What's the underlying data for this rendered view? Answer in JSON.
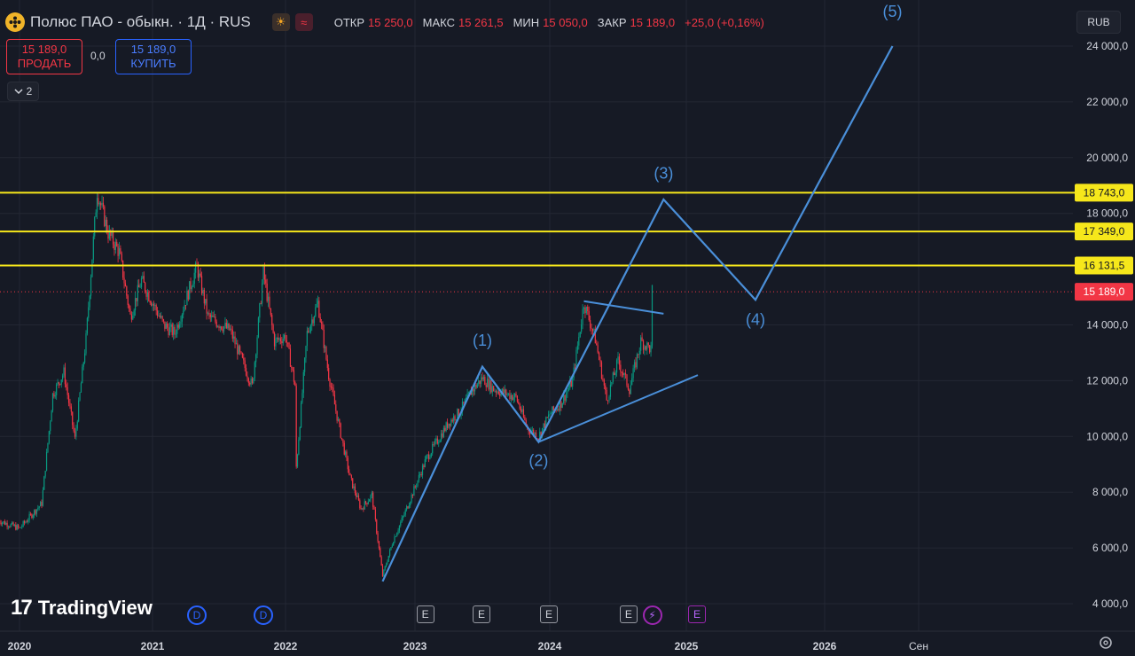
{
  "header": {
    "title": "Полюс ПАО - обыкн. · 1Д · RUS",
    "icons": [
      "polyus-logo-icon",
      "sun-icon",
      "wave-icon"
    ],
    "ohlc": [
      {
        "k": "ОТКР",
        "v": "15 250,0"
      },
      {
        "k": "МАКС",
        "v": "15 261,5"
      },
      {
        "k": "МИН",
        "v": "15 050,0"
      },
      {
        "k": "ЗАКР",
        "v": "15 189,0"
      }
    ],
    "change": "+25,0 (+0,16%)"
  },
  "trade": {
    "sell_price": "15 189,0",
    "sell_label": "ПРОДАТЬ",
    "spread": "0,0",
    "buy_price": "15 189,0",
    "buy_label": "КУПИТЬ"
  },
  "indicators_collapse": {
    "count": "2"
  },
  "currency": "RUB",
  "brand": "TradingView",
  "colors": {
    "background": "#161a25",
    "bull": "#089981",
    "bear": "#f23645",
    "level": "#f6e71b",
    "wave": "#4a8fd9",
    "price_tag": "#f23645"
  },
  "events": [
    {
      "type": "D",
      "x_date": "2021-05"
    },
    {
      "type": "D",
      "x_date": "2021-11"
    },
    {
      "type": "E",
      "x_date": "2023-02"
    },
    {
      "type": "E",
      "x_date": "2023-07"
    },
    {
      "type": "E",
      "x_date": "2024-01"
    },
    {
      "type": "E",
      "x_date": "2024-08"
    },
    {
      "type": "bolt",
      "x_date": "2024-10"
    },
    {
      "type": "E",
      "x_date": "2025-02"
    }
  ],
  "chart_data": {
    "type": "line",
    "x_axis_labels": [
      "2020",
      "2021",
      "2022",
      "2023",
      "2024",
      "2025",
      "2026",
      "Сен"
    ],
    "y_axis_labels": [
      "4 000,0",
      "6 000,0",
      "8 000,0",
      "10 000,0",
      "12 000,0",
      "14 000,0",
      "18 000,0",
      "20 000,0",
      "22 000,0",
      "24 000,0"
    ],
    "ylim": [
      3300,
      25000
    ],
    "horizontal_levels": [
      {
        "value": 18743,
        "label": "18 743,0"
      },
      {
        "value": 17349,
        "label": "17 349,0"
      },
      {
        "value": 16131.5,
        "label": "16 131,5"
      }
    ],
    "last_price": {
      "value": 15189,
      "label": "15 189,0"
    },
    "price_path": [
      {
        "x": "2019-11",
        "y": 7000
      },
      {
        "x": "2020-01",
        "y": 6700
      },
      {
        "x": "2020-03",
        "y": 7600
      },
      {
        "x": "2020-04",
        "y": 11500
      },
      {
        "x": "2020-05",
        "y": 12300
      },
      {
        "x": "2020-06",
        "y": 9900
      },
      {
        "x": "2020-07",
        "y": 13500
      },
      {
        "x": "2020-08",
        "y": 18800
      },
      {
        "x": "2020-09",
        "y": 17300
      },
      {
        "x": "2020-10",
        "y": 16600
      },
      {
        "x": "2020-11",
        "y": 14300
      },
      {
        "x": "2020-12",
        "y": 15600
      },
      {
        "x": "2021-02",
        "y": 14000
      },
      {
        "x": "2021-03",
        "y": 13700
      },
      {
        "x": "2021-05",
        "y": 16100
      },
      {
        "x": "2021-06",
        "y": 14300
      },
      {
        "x": "2021-08",
        "y": 13800
      },
      {
        "x": "2021-09",
        "y": 12800
      },
      {
        "x": "2021-10",
        "y": 11800
      },
      {
        "x": "2021-11",
        "y": 15900
      },
      {
        "x": "2021-12",
        "y": 13400
      },
      {
        "x": "2022-01",
        "y": 13600
      },
      {
        "x": "2022-02",
        "y": 11600
      },
      {
        "x": "2022-02",
        "y": 8900
      },
      {
        "x": "2022-03",
        "y": 13700
      },
      {
        "x": "2022-04",
        "y": 14800
      },
      {
        "x": "2022-05",
        "y": 12200
      },
      {
        "x": "2022-06",
        "y": 10300
      },
      {
        "x": "2022-07",
        "y": 8500
      },
      {
        "x": "2022-08",
        "y": 7400
      },
      {
        "x": "2022-09",
        "y": 7900
      },
      {
        "x": "2022-10",
        "y": 5000
      },
      {
        "x": "2022-11",
        "y": 6300
      },
      {
        "x": "2022-12",
        "y": 7200
      },
      {
        "x": "2023-02",
        "y": 9200
      },
      {
        "x": "2023-04",
        "y": 10500
      },
      {
        "x": "2023-05",
        "y": 10900
      },
      {
        "x": "2023-06",
        "y": 11600
      },
      {
        "x": "2023-07",
        "y": 12100
      },
      {
        "x": "2023-08",
        "y": 11700
      },
      {
        "x": "2023-10",
        "y": 11400
      },
      {
        "x": "2023-11",
        "y": 10300
      },
      {
        "x": "2023-12",
        "y": 10000
      },
      {
        "x": "2024-01",
        "y": 10800
      },
      {
        "x": "2024-02",
        "y": 11200
      },
      {
        "x": "2024-03",
        "y": 12000
      },
      {
        "x": "2024-04",
        "y": 14800
      },
      {
        "x": "2024-05",
        "y": 13500
      },
      {
        "x": "2024-06",
        "y": 11300
      },
      {
        "x": "2024-07",
        "y": 12700
      },
      {
        "x": "2024-08",
        "y": 11700
      },
      {
        "x": "2024-09",
        "y": 13400
      },
      {
        "x": "2024-10",
        "y": 13100
      },
      {
        "x": "2024-10",
        "y": 15200
      }
    ],
    "wave_path": [
      {
        "x": "2022-10",
        "y": 4800
      },
      {
        "x": "2023-07",
        "y": 12500
      },
      {
        "x": "2023-12",
        "y": 9800
      },
      {
        "x": "2024-11",
        "y": 18500
      },
      {
        "x": "2025-07",
        "y": 14900
      },
      {
        "x": "2026-07",
        "y": 24000
      }
    ],
    "wave_labels": [
      {
        "label": "(1)",
        "x": "2023-07",
        "y": 13250
      },
      {
        "label": "(2)",
        "x": "2023-12",
        "y": 8950
      },
      {
        "label": "(3)",
        "x": "2024-11",
        "y": 19250
      },
      {
        "label": "(4)",
        "x": "2025-07",
        "y": 14000
      },
      {
        "label": "(5)",
        "x": "2026-07",
        "y": 25050
      }
    ],
    "trendlines": [
      {
        "from": {
          "x": "2023-12",
          "y": 9800
        },
        "to": {
          "x": "2025-02",
          "y": 12200
        }
      },
      {
        "from": {
          "x": "2024-04",
          "y": 14850
        },
        "to": {
          "x": "2024-11",
          "y": 14400
        }
      }
    ],
    "grid": true
  }
}
